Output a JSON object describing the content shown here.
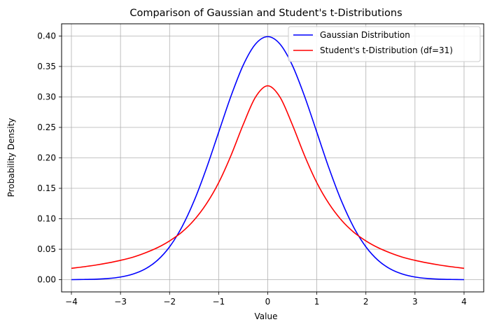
{
  "chart_data": {
    "type": "line",
    "title": "Comparison of Gaussian and Student's t-Distributions",
    "xlabel": "Value",
    "ylabel": "Probability Density",
    "xlim": [
      -4.2,
      4.4
    ],
    "ylim": [
      -0.02,
      0.42
    ],
    "grid": true,
    "legend_position": "top-right",
    "xticks": [
      -4,
      -3,
      -2,
      -1,
      0,
      1,
      2,
      3,
      4
    ],
    "xtick_labels": [
      "−4",
      "−3",
      "−2",
      "−1",
      "0",
      "1",
      "2",
      "3",
      "4"
    ],
    "yticks": [
      0.0,
      0.05,
      0.1,
      0.15,
      0.2,
      0.25,
      0.3,
      0.35,
      0.4
    ],
    "ytick_labels": [
      "0.00",
      "0.05",
      "0.10",
      "0.15",
      "0.20",
      "0.25",
      "0.30",
      "0.35",
      "0.40"
    ],
    "series": [
      {
        "name": "Gaussian Distribution",
        "color": "#0000ff",
        "x": [
          -4.0,
          -3.75,
          -3.5,
          -3.25,
          -3.0,
          -2.75,
          -2.5,
          -2.25,
          -2.0,
          -1.75,
          -1.5,
          -1.25,
          -1.0,
          -0.75,
          -0.5,
          -0.25,
          0.0,
          0.25,
          0.5,
          0.75,
          1.0,
          1.25,
          1.5,
          1.75,
          2.0,
          2.25,
          2.5,
          2.75,
          3.0,
          3.25,
          3.5,
          3.75,
          4.0
        ],
        "values": [
          0.0001,
          0.0004,
          0.0009,
          0.002,
          0.0044,
          0.0091,
          0.0175,
          0.0317,
          0.054,
          0.0863,
          0.1295,
          0.1826,
          0.242,
          0.3011,
          0.3521,
          0.3867,
          0.3989,
          0.3867,
          0.3521,
          0.3011,
          0.242,
          0.1826,
          0.1295,
          0.0863,
          0.054,
          0.0317,
          0.0175,
          0.0091,
          0.0044,
          0.002,
          0.0009,
          0.0004,
          0.0001
        ]
      },
      {
        "name": "Student's t-Distribution (df=31)",
        "color": "#ff0000",
        "x": [
          -4.0,
          -3.75,
          -3.5,
          -3.25,
          -3.0,
          -2.75,
          -2.5,
          -2.25,
          -2.0,
          -1.75,
          -1.5,
          -1.25,
          -1.0,
          -0.75,
          -0.5,
          -0.25,
          0.0,
          0.25,
          0.5,
          0.75,
          1.0,
          1.25,
          1.5,
          1.75,
          2.0,
          2.25,
          2.5,
          2.75,
          3.0,
          3.25,
          3.5,
          3.75,
          4.0
        ],
        "values": [
          0.0187,
          0.0212,
          0.0241,
          0.0276,
          0.0318,
          0.0369,
          0.0439,
          0.0525,
          0.0637,
          0.0781,
          0.0979,
          0.1245,
          0.1592,
          0.2037,
          0.2546,
          0.2996,
          0.3183,
          0.2996,
          0.2546,
          0.2037,
          0.1592,
          0.1245,
          0.0979,
          0.0781,
          0.0637,
          0.0525,
          0.0439,
          0.0369,
          0.0318,
          0.0276,
          0.0241,
          0.0212,
          0.0187
        ]
      }
    ]
  }
}
